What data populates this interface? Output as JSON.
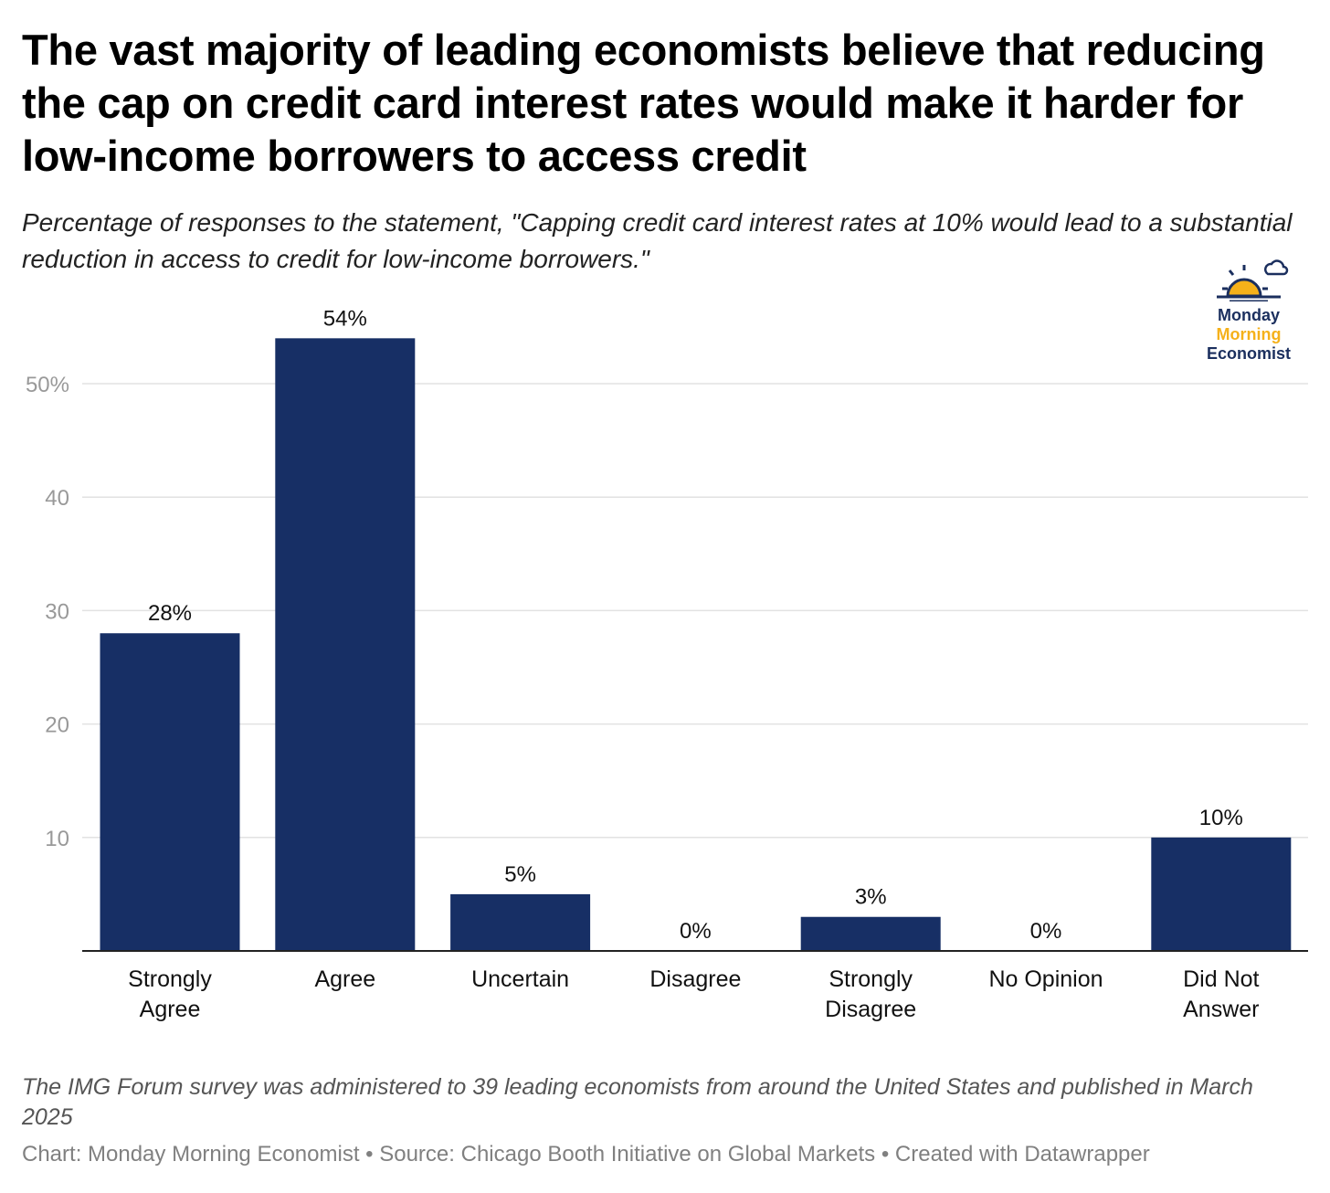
{
  "title": "The vast majority of leading economists believe that reducing the cap on credit card interest rates would make it harder for low-income borrowers to access credit",
  "subtitle": "Percentage of responses to the statement, \"Capping credit card interest rates at 10% would lead to a substantial reduction in access to credit for low-income borrowers.\"",
  "logo": {
    "line1": "Monday",
    "line2": "Morning",
    "line3": "Economist",
    "navy": "#1b2f5e",
    "gold": "#f5b11a"
  },
  "notes": "The IMG Forum survey was administered to 39 leading economists from around the United States and published in March 2025",
  "credits": "Chart: Monday Morning Economist • Source: Chicago Booth Initiative on Global Markets • Created with Datawrapper",
  "chart_data": {
    "type": "bar",
    "categories": [
      [
        "Strongly",
        "Agree"
      ],
      [
        "Agree"
      ],
      [
        "Uncertain"
      ],
      [
        "Disagree"
      ],
      [
        "Strongly",
        "Disagree"
      ],
      [
        "No Opinion"
      ],
      [
        "Did Not",
        "Answer"
      ]
    ],
    "values": [
      28,
      54,
      5,
      0,
      3,
      0,
      10
    ],
    "data_labels": [
      "28%",
      "54%",
      "5%",
      "0%",
      "3%",
      "0%",
      "10%"
    ],
    "yticks": [
      10,
      20,
      30,
      40,
      50
    ],
    "ytick_labels": [
      "10",
      "20",
      "30",
      "40",
      "50%"
    ],
    "ylim": [
      0,
      54
    ],
    "grid": true,
    "bar_color": "#172f65",
    "xlabel": "",
    "ylabel": ""
  }
}
